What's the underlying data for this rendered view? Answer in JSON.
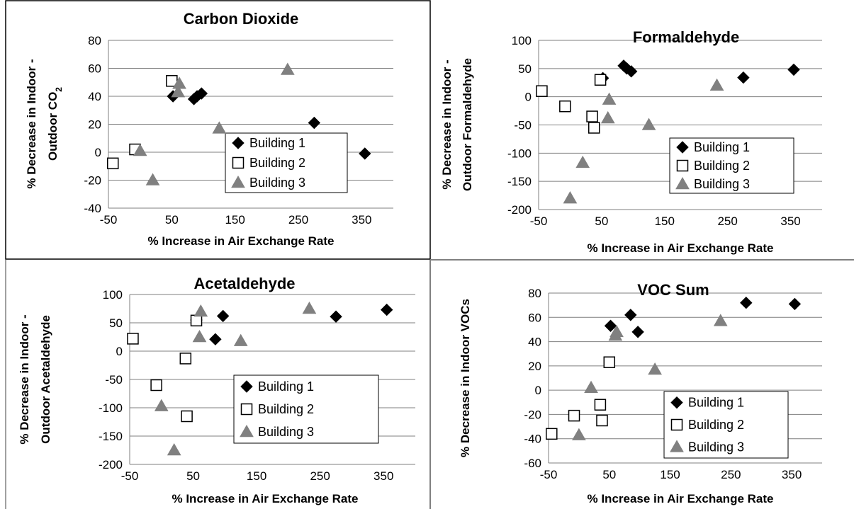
{
  "colors": {
    "building_1": "#000000",
    "building_2": "#ffffff",
    "building_3": "#808080",
    "grid": "#7f7f7f",
    "frame": "#808080"
  },
  "chart_data": [
    {
      "type": "scatter",
      "title": "Carbon Dioxide",
      "xlabel": "% Increase in Air Exchange Rate",
      "ylabel_line1": "% Decrease in Indoor -",
      "ylabel_line2": "Outdoor CO",
      "ylabel_sub": "2",
      "xlim": [
        -50,
        400
      ],
      "ylim": [
        -40,
        80
      ],
      "xticks": [
        -50,
        50,
        150,
        250,
        350
      ],
      "yticks": [
        -40,
        -20,
        0,
        20,
        40,
        60,
        80
      ],
      "grid": "horizontal",
      "legend_position": "lower-right",
      "series": [
        {
          "name": "Building 1",
          "marker": "diamond",
          "points": [
            [
              52,
              40
            ],
            [
              85,
              38
            ],
            [
              90,
              40
            ],
            [
              97,
              42
            ],
            [
              275,
              21
            ],
            [
              355,
              -1
            ]
          ]
        },
        {
          "name": "Building 2",
          "marker": "square",
          "points": [
            [
              -43,
              -8
            ],
            [
              -8,
              2
            ],
            [
              50,
              51
            ]
          ]
        },
        {
          "name": "Building 3",
          "marker": "triangle",
          "points": [
            [
              0,
              1
            ],
            [
              20,
              -20
            ],
            [
              60,
              43
            ],
            [
              62,
              49
            ],
            [
              125,
              17
            ],
            [
              233,
              59
            ]
          ]
        }
      ]
    },
    {
      "type": "scatter",
      "title": "Formaldehyde",
      "xlabel": "% Increase in Air Exchange Rate",
      "ylabel_line1": "% Decrease in Indoor -",
      "ylabel_line2": "Outdoor Formaldehyde",
      "xlim": [
        -50,
        400
      ],
      "ylim": [
        -200,
        100
      ],
      "xticks": [
        -50,
        50,
        150,
        250,
        350
      ],
      "yticks": [
        -200,
        -150,
        -100,
        -50,
        0,
        50,
        100
      ],
      "grid": "horizontal",
      "legend_position": "lower-right",
      "series": [
        {
          "name": "Building 1",
          "marker": "diamond",
          "points": [
            [
              52,
              33
            ],
            [
              85,
              55
            ],
            [
              90,
              50
            ],
            [
              97,
              45
            ],
            [
              275,
              34
            ],
            [
              355,
              48
            ]
          ]
        },
        {
          "name": "Building 2",
          "marker": "square",
          "points": [
            [
              -45,
              10
            ],
            [
              -8,
              -17
            ],
            [
              35,
              -35
            ],
            [
              38,
              -55
            ],
            [
              48,
              30
            ]
          ]
        },
        {
          "name": "Building 3",
          "marker": "triangle",
          "points": [
            [
              0,
              -180
            ],
            [
              20,
              -117
            ],
            [
              60,
              -38
            ],
            [
              62,
              -5
            ],
            [
              125,
              -50
            ],
            [
              233,
              20
            ]
          ]
        }
      ]
    },
    {
      "type": "scatter",
      "title": "Acetaldehyde",
      "xlabel": "% Increase in Air Exchange Rate",
      "ylabel_line1": "% Decrease in Indoor -",
      "ylabel_line2": "Outdoor Acetaldehyde",
      "xlim": [
        -50,
        400
      ],
      "ylim": [
        -200,
        100
      ],
      "xticks": [
        -50,
        50,
        150,
        250,
        350
      ],
      "yticks": [
        -200,
        -150,
        -100,
        -50,
        0,
        50,
        100
      ],
      "grid": "horizontal",
      "legend_position": "lower-right",
      "series": [
        {
          "name": "Building 1",
          "marker": "diamond",
          "points": [
            [
              55,
              55
            ],
            [
              85,
              21
            ],
            [
              97,
              62
            ],
            [
              275,
              61
            ],
            [
              355,
              73
            ]
          ]
        },
        {
          "name": "Building 2",
          "marker": "square",
          "points": [
            [
              -45,
              22
            ],
            [
              -8,
              -60
            ],
            [
              38,
              -13
            ],
            [
              40,
              -115
            ],
            [
              55,
              54
            ]
          ]
        },
        {
          "name": "Building 3",
          "marker": "triangle",
          "points": [
            [
              0,
              -97
            ],
            [
              20,
              -175
            ],
            [
              60,
              25
            ],
            [
              62,
              70
            ],
            [
              125,
              18
            ],
            [
              233,
              75
            ]
          ]
        }
      ]
    },
    {
      "type": "scatter",
      "title": "VOC Sum",
      "xlabel": "% Increase in Air Exchange Rate",
      "ylabel_line1": "% Decrease in Indoor  VOCs",
      "xlim": [
        -50,
        400
      ],
      "ylim": [
        -60,
        80
      ],
      "xticks": [
        -50,
        50,
        150,
        250,
        350
      ],
      "yticks": [
        -60,
        -40,
        -20,
        0,
        20,
        40,
        60,
        80
      ],
      "grid": "horizontal",
      "legend_position": "lower-right",
      "series": [
        {
          "name": "Building 1",
          "marker": "diamond",
          "points": [
            [
              52,
              53
            ],
            [
              85,
              62
            ],
            [
              97,
              48
            ],
            [
              275,
              72
            ],
            [
              355,
              71
            ]
          ]
        },
        {
          "name": "Building 2",
          "marker": "square",
          "points": [
            [
              -45,
              -36
            ],
            [
              -8,
              -21
            ],
            [
              35,
              -12
            ],
            [
              38,
              -25
            ],
            [
              50,
              23
            ]
          ]
        },
        {
          "name": "Building 3",
          "marker": "triangle",
          "points": [
            [
              0,
              -37
            ],
            [
              20,
              2
            ],
            [
              60,
              45
            ],
            [
              62,
              48
            ],
            [
              125,
              17
            ],
            [
              233,
              57
            ]
          ]
        }
      ]
    }
  ]
}
